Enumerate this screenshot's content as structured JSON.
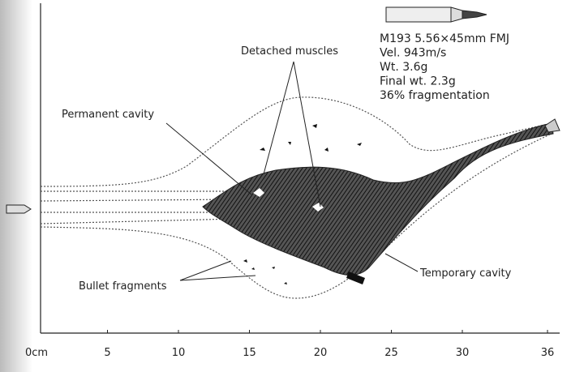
{
  "bullet_info": [
    "M193 5.56×45mm FMJ",
    "Vel. 943m/s",
    "Wt. 3.6g",
    "Final wt. 2.3g",
    "36% fragmentation"
  ],
  "labels": {
    "detached_muscles": "Detached muscles",
    "permanent_cavity": "Permanent cavity",
    "bullet_fragments": "Bullet fragments",
    "temporary_cavity": "Temporary cavity"
  },
  "axis": {
    "xlim": [
      0,
      36
    ],
    "ticks": [
      {
        "value": 0,
        "label": "0cm"
      },
      5,
      10,
      15,
      20,
      25,
      30,
      36
    ]
  }
}
